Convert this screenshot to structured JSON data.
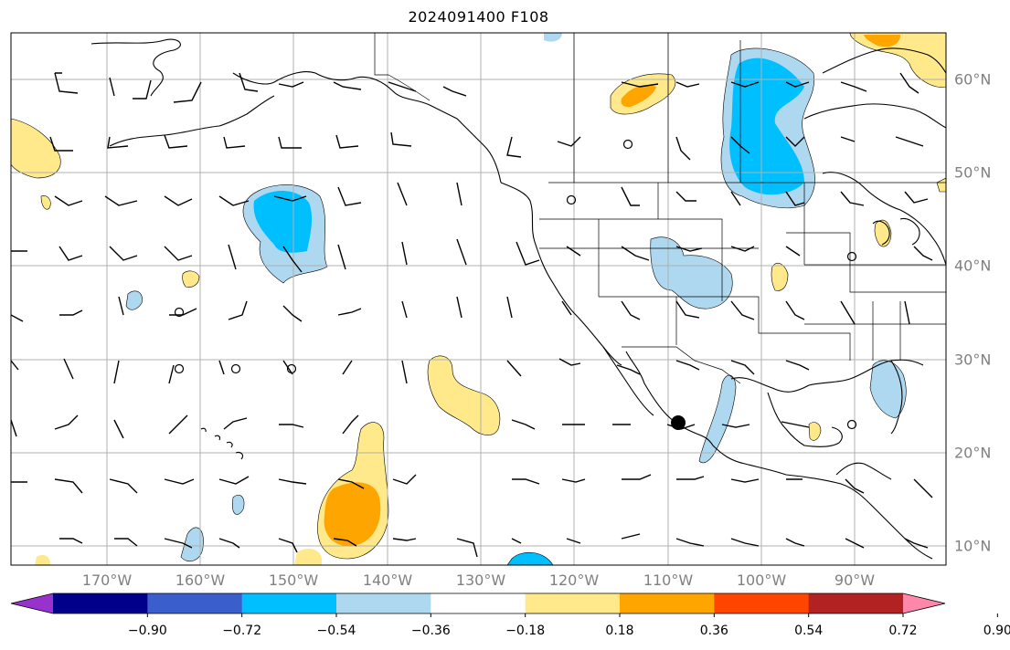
{
  "title": "2024091400 F108",
  "colors": {
    "land_line": "#000000",
    "grid": "#b0b0b0",
    "frame": "#000000",
    "label": "#808080"
  },
  "lon_labels": [
    "170°W",
    "160°W",
    "150°W",
    "140°W",
    "130°W",
    "120°W",
    "110°W",
    "100°W",
    "90°W"
  ],
  "lat_labels": [
    "60°N",
    "50°N",
    "40°N",
    "30°N",
    "20°N",
    "10°N"
  ],
  "colorbar": {
    "ticks": [
      "−0.90",
      "−0.72",
      "−0.54",
      "−0.36",
      "−0.18",
      "0.18",
      "0.36",
      "0.54",
      "0.72",
      "0.90"
    ],
    "colors": [
      "#9932cc",
      "#00008b",
      "#3a5fcd",
      "#00bfff",
      "#add8f0",
      "#ffffff",
      "#ffe98a",
      "#ffa500",
      "#ff4500",
      "#b22222",
      "#ff88aa"
    ]
  }
}
